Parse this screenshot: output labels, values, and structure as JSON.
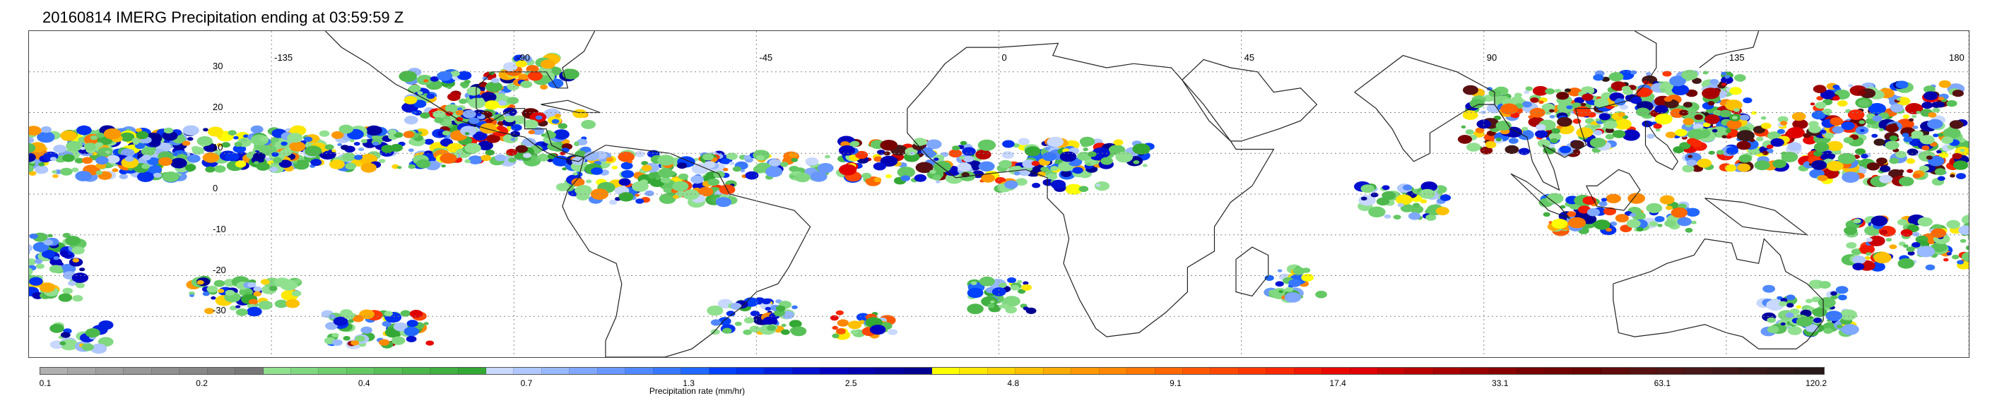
{
  "title": "20160814 IMERG Precipitation ending at 03:59:59 Z",
  "map": {
    "projection": "equirectangular",
    "lon_range": [
      -180,
      180
    ],
    "lat_range": [
      -40,
      40
    ],
    "lon_ticks": [
      {
        "value": -135,
        "label": "-135"
      },
      {
        "value": -90,
        "label": "-90"
      },
      {
        "value": -45,
        "label": "-45"
      },
      {
        "value": 0,
        "label": "0"
      },
      {
        "value": 45,
        "label": "45"
      },
      {
        "value": 90,
        "label": "90"
      },
      {
        "value": 135,
        "label": "135"
      },
      {
        "value": 180,
        "label": "180"
      }
    ],
    "lat_ticks": [
      {
        "value": 30,
        "label": "30"
      },
      {
        "value": 20,
        "label": "20"
      },
      {
        "value": 10,
        "label": "10"
      },
      {
        "value": 0,
        "label": "0"
      },
      {
        "value": -10,
        "label": "-10"
      },
      {
        "value": -20,
        "label": "-20"
      },
      {
        "value": -30,
        "label": "-30"
      }
    ],
    "gridlines": "dotted"
  },
  "colorbar": {
    "label": "Precipitation rate (mm/hr)",
    "colors": [
      "#b0b0b0",
      "#a8a8a8",
      "#a0a0a0",
      "#989898",
      "#909090",
      "#888888",
      "#808080",
      "#787878",
      "#90e090",
      "#80d880",
      "#70d070",
      "#64c864",
      "#58c058",
      "#4cb84c",
      "#40b040",
      "#34a834",
      "#c8d8ff",
      "#b0c8ff",
      "#98b8ff",
      "#80a8ff",
      "#6898ff",
      "#5088ff",
      "#3878ff",
      "#2068ff",
      "#0040ff",
      "#0030f0",
      "#0020e0",
      "#0010d0",
      "#0000c0",
      "#0000b0",
      "#0000a0",
      "#000090",
      "#ffff00",
      "#ffe800",
      "#ffd400",
      "#ffc000",
      "#ffac00",
      "#ff9800",
      "#ff8800",
      "#ff7800",
      "#ff6800",
      "#ff5800",
      "#ff4800",
      "#ff3800",
      "#f82800",
      "#f01800",
      "#e80800",
      "#e00000",
      "#c80000",
      "#b80000",
      "#a80000",
      "#980000",
      "#880000",
      "#780000",
      "#700000",
      "#680000",
      "#600a0a",
      "#581010",
      "#501414",
      "#481818",
      "#401818",
      "#381818",
      "#301818",
      "#281818"
    ],
    "ticks": [
      "0.1",
      "0.2",
      "0.4",
      "0.7",
      "1.3",
      "2.5",
      "4.8",
      "9.1",
      "17.4",
      "33.1",
      "63.1",
      "120.2"
    ]
  }
}
